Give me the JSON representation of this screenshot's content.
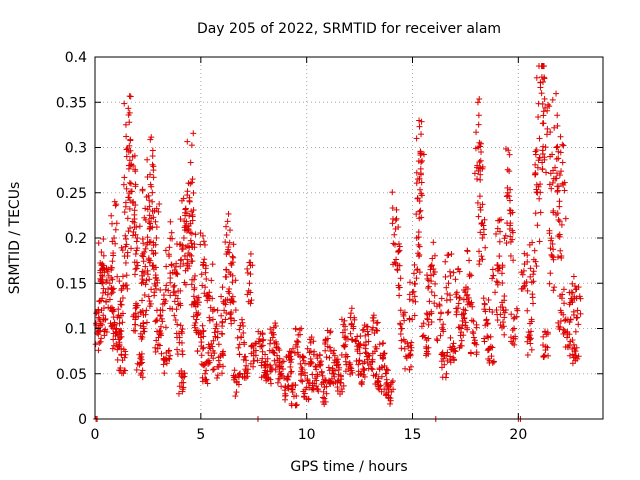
{
  "chart_data": {
    "type": "scatter",
    "title": "Day 205 of 2022, SRMTID for receiver alam",
    "xlabel": "GPS time / hours",
    "ylabel": "SRMTID / TECUs",
    "xlim": [
      0,
      24
    ],
    "ylim": [
      0,
      0.4
    ],
    "xticks": [
      0,
      5,
      10,
      15,
      20
    ],
    "xtick_labels": [
      "0",
      "5",
      "10",
      "15",
      "20"
    ],
    "yticks": [
      0,
      0.05,
      0.1,
      0.15,
      0.2,
      0.25,
      0.3,
      0.35,
      0.4
    ],
    "ytick_labels": [
      "0",
      "0.05",
      "0.1",
      "0.15",
      "0.2",
      "0.25",
      "0.3",
      "0.35",
      "0.4"
    ],
    "grid": true,
    "marker": "+",
    "series": [
      {
        "name": "SRMTID",
        "color": "#e00000",
        "points": [
          [
            0.05,
            0.0
          ],
          [
            0.1,
            0.0
          ],
          [
            0.1,
            0.095
          ],
          [
            0.2,
            0.13
          ],
          [
            0.3,
            0.17
          ],
          [
            0.4,
            0.11
          ],
          [
            0.5,
            0.14
          ],
          [
            0.7,
            0.15
          ],
          [
            0.8,
            0.12
          ],
          [
            0.9,
            0.2
          ],
          [
            1.0,
            0.1
          ],
          [
            1.1,
            0.08
          ],
          [
            1.2,
            0.13
          ],
          [
            1.3,
            0.065
          ],
          [
            1.4,
            0.18
          ],
          [
            1.5,
            0.29
          ],
          [
            1.6,
            0.295
          ],
          [
            1.7,
            0.26
          ],
          [
            1.8,
            0.24
          ],
          [
            1.9,
            0.11
          ],
          [
            2.0,
            0.2
          ],
          [
            2.1,
            0.06
          ],
          [
            2.2,
            0.15
          ],
          [
            2.3,
            0.1
          ],
          [
            2.4,
            0.22
          ],
          [
            2.5,
            0.16
          ],
          [
            2.6,
            0.27
          ],
          [
            2.7,
            0.24
          ],
          [
            2.8,
            0.14
          ],
          [
            2.9,
            0.2
          ],
          [
            3.0,
            0.09
          ],
          [
            3.2,
            0.12
          ],
          [
            3.4,
            0.065
          ],
          [
            3.5,
            0.18
          ],
          [
            3.7,
            0.14
          ],
          [
            3.9,
            0.16
          ],
          [
            4.0,
            0.09
          ],
          [
            4.1,
            0.04
          ],
          [
            4.2,
            0.2
          ],
          [
            4.3,
            0.19
          ],
          [
            4.4,
            0.21
          ],
          [
            4.5,
            0.26
          ],
          [
            4.6,
            0.19
          ],
          [
            4.7,
            0.13
          ],
          [
            4.8,
            0.11
          ],
          [
            5.0,
            0.09
          ],
          [
            5.1,
            0.17
          ],
          [
            5.2,
            0.05
          ],
          [
            5.4,
            0.14
          ],
          [
            5.5,
            0.07
          ],
          [
            5.7,
            0.1
          ],
          [
            5.9,
            0.06
          ],
          [
            6.1,
            0.12
          ],
          [
            6.3,
            0.19
          ],
          [
            6.4,
            0.16
          ],
          [
            6.5,
            0.13
          ],
          [
            6.7,
            0.04
          ],
          [
            6.9,
            0.09
          ],
          [
            7.1,
            0.055
          ],
          [
            7.3,
            0.15
          ],
          [
            7.5,
            0.07
          ],
          [
            7.7,
            0.0
          ],
          [
            7.8,
            0.08
          ],
          [
            8.0,
            0.06
          ],
          [
            8.2,
            0.045
          ],
          [
            8.4,
            0.09
          ],
          [
            8.6,
            0.07
          ],
          [
            8.8,
            0.05
          ],
          [
            9.0,
            0.035
          ],
          [
            9.2,
            0.065
          ],
          [
            9.4,
            0.025
          ],
          [
            9.6,
            0.085
          ],
          [
            9.8,
            0.055
          ],
          [
            10.0,
            0.035
          ],
          [
            10.2,
            0.075
          ],
          [
            10.4,
            0.045
          ],
          [
            10.6,
            0.06
          ],
          [
            10.8,
            0.03
          ],
          [
            11.0,
            0.08
          ],
          [
            11.2,
            0.05
          ],
          [
            11.4,
            0.065
          ],
          [
            11.6,
            0.04
          ],
          [
            11.8,
            0.09
          ],
          [
            12.0,
            0.06
          ],
          [
            12.2,
            0.1
          ],
          [
            12.4,
            0.075
          ],
          [
            12.6,
            0.05
          ],
          [
            12.8,
            0.085
          ],
          [
            13.0,
            0.06
          ],
          [
            13.2,
            0.095
          ],
          [
            13.4,
            0.045
          ],
          [
            13.6,
            0.07
          ],
          [
            13.8,
            0.04
          ],
          [
            14.0,
            0.03
          ],
          [
            14.2,
            0.21
          ],
          [
            14.3,
            0.17
          ],
          [
            14.5,
            0.1
          ],
          [
            14.8,
            0.07
          ],
          [
            15.0,
            0.14
          ],
          [
            15.2,
            0.2
          ],
          [
            15.3,
            0.285
          ],
          [
            15.4,
            0.27
          ],
          [
            15.6,
            0.09
          ],
          [
            15.8,
            0.13
          ],
          [
            16.0,
            0.16
          ],
          [
            16.1,
            0.0
          ],
          [
            16.3,
            0.11
          ],
          [
            16.5,
            0.06
          ],
          [
            16.7,
            0.15
          ],
          [
            16.9,
            0.08
          ],
          [
            17.1,
            0.14
          ],
          [
            17.3,
            0.1
          ],
          [
            17.5,
            0.12
          ],
          [
            17.7,
            0.16
          ],
          [
            17.9,
            0.09
          ],
          [
            18.1,
            0.3
          ],
          [
            18.2,
            0.27
          ],
          [
            18.3,
            0.2
          ],
          [
            18.5,
            0.11
          ],
          [
            18.7,
            0.08
          ],
          [
            18.9,
            0.14
          ],
          [
            19.1,
            0.18
          ],
          [
            19.3,
            0.12
          ],
          [
            19.5,
            0.25
          ],
          [
            19.6,
            0.21
          ],
          [
            19.8,
            0.1
          ],
          [
            20.0,
            0.0
          ],
          [
            20.1,
            0.0
          ],
          [
            20.3,
            0.15
          ],
          [
            20.5,
            0.09
          ],
          [
            20.7,
            0.16
          ],
          [
            20.9,
            0.25
          ],
          [
            21.0,
            0.31
          ],
          [
            21.1,
            0.36
          ],
          [
            21.2,
            0.34
          ],
          [
            21.3,
            0.08
          ],
          [
            21.5,
            0.29
          ],
          [
            21.6,
            0.18
          ],
          [
            21.8,
            0.3
          ],
          [
            21.9,
            0.22
          ],
          [
            22.0,
            0.12
          ],
          [
            22.1,
            0.26
          ],
          [
            22.3,
            0.09
          ],
          [
            22.5,
            0.14
          ],
          [
            22.7,
            0.075
          ],
          [
            22.8,
            0.12
          ]
        ]
      }
    ]
  }
}
